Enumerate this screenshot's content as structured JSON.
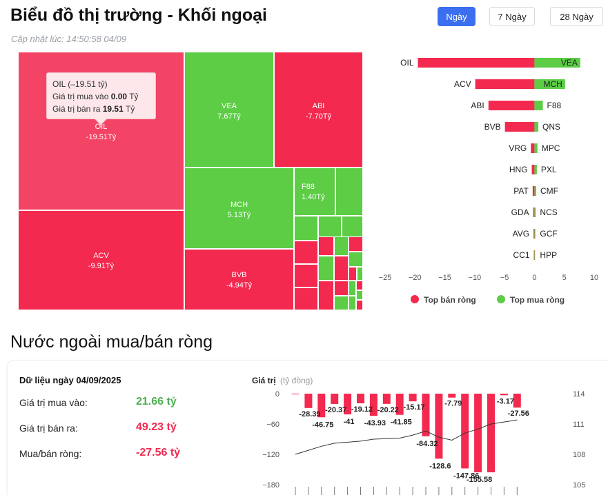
{
  "header": {
    "title": "Biểu đồ thị trường - Khối ngoại",
    "updated": "Cập nhật lúc: 14:50:58 04/09",
    "tabs": [
      {
        "label": "Ngày",
        "active": true
      },
      {
        "label": "7 Ngày",
        "active": false
      },
      {
        "label": "28 Ngày",
        "active": false
      }
    ]
  },
  "colors": {
    "sell": "#f4294f",
    "sell_light": "#f44466",
    "buy": "#5ccd45",
    "line": "#333333"
  },
  "tooltip": {
    "title": "OIL (–19.51 tỷ)",
    "buy_label": "Giá trị mua vào",
    "buy_value": "0.00",
    "sell_label": "Giá trị bán ra",
    "sell_value": "19.51",
    "unit": "Tỷ"
  },
  "chart_data": [
    {
      "type": "heatmap",
      "cells": [
        {
          "ticker": "OIL",
          "value": -19.51,
          "text": "-19.51Tỷ"
        },
        {
          "ticker": "ACV",
          "value": -9.91,
          "text": "-9.91Tỷ"
        },
        {
          "ticker": "VEA",
          "value": 7.67,
          "text": "7.67Tỷ"
        },
        {
          "ticker": "ABI",
          "value": -7.7,
          "text": "-7.70Tỷ"
        },
        {
          "ticker": "MCH",
          "value": 5.13,
          "text": "5.13Tỷ"
        },
        {
          "ticker": "BVB",
          "value": -4.94,
          "text": "-4.94Tỷ"
        },
        {
          "ticker": "F88",
          "value": 1.4,
          "text": "1.40Tỷ"
        }
      ]
    },
    {
      "type": "bar",
      "orientation": "horizontal",
      "sell_categories": [
        "OIL",
        "ACV",
        "ABI",
        "BVB",
        "VRG",
        "HNG",
        "PAT",
        "GDA",
        "AVG",
        "CC1"
      ],
      "buy_categories": [
        "VEA",
        "MCH",
        "F88",
        "QNS",
        "MPC",
        "PXL",
        "CMF",
        "NCS",
        "GCF",
        "HPP"
      ],
      "series": [
        {
          "name": "Top bán ròng",
          "values": [
            -19.51,
            -9.91,
            -7.7,
            -4.94,
            -0.6,
            -0.45,
            -0.3,
            -0.2,
            -0.15,
            -0.1
          ]
        },
        {
          "name": "Top mua ròng",
          "values": [
            7.67,
            5.13,
            1.4,
            0.65,
            0.5,
            0.4,
            0.3,
            0.2,
            0.15,
            0.1
          ]
        }
      ],
      "xlim": [
        -25,
        10
      ],
      "xticks": [
        "−25",
        "−20",
        "−15",
        "−10",
        "−5",
        "0",
        "5",
        "10"
      ],
      "legend": "bottom"
    },
    {
      "type": "bar",
      "combo": "bar+line",
      "title": "Dữ liệu ngày 04/09/2025",
      "ylabel": "Giá trị",
      "yunit": "(tỷ đồng)",
      "values": [
        -0.6,
        -28.39,
        -46.75,
        -20.37,
        -41,
        -19.12,
        -43.93,
        -20.22,
        -41.85,
        -15.17,
        -84.32,
        -128.6,
        -7.79,
        -147.86,
        -155.58,
        -155.58,
        -3.17,
        -27.56
      ],
      "labels": [
        "",
        "-28.39",
        "-46.75",
        "-20.37",
        "-41",
        "-19.12",
        "-43.93",
        "-20.22",
        "-41.85",
        "-15.17",
        "-84.32",
        "-128.6",
        "-7.79",
        "-147.86",
        "-155.58",
        "",
        "-3.17",
        "-27.56"
      ],
      "ylim": [
        -180,
        0
      ],
      "yticks": [
        "0",
        "−60",
        "−120",
        "−180"
      ],
      "y2lim": [
        105,
        114
      ],
      "y2ticks": [
        "114",
        "111",
        "108",
        "105"
      ],
      "line": [
        108,
        108.4,
        108.8,
        109.1,
        109.2,
        109.3,
        109.5,
        109.55,
        109.6,
        109.9,
        110.3,
        109.7,
        109.4,
        110.1,
        110.5,
        111.0,
        111.2,
        111.4
      ]
    }
  ],
  "summary": {
    "buy_label": "Giá trị mua vào:",
    "buy_value": "21.66 tỷ",
    "sell_label": "Giá trị bán ra:",
    "sell_value": "49.23 tỷ",
    "net_label": "Mua/bán ròng:",
    "net_value": "-27.56 tỷ"
  },
  "section2_title": "Nước ngoài mua/bán ròng"
}
